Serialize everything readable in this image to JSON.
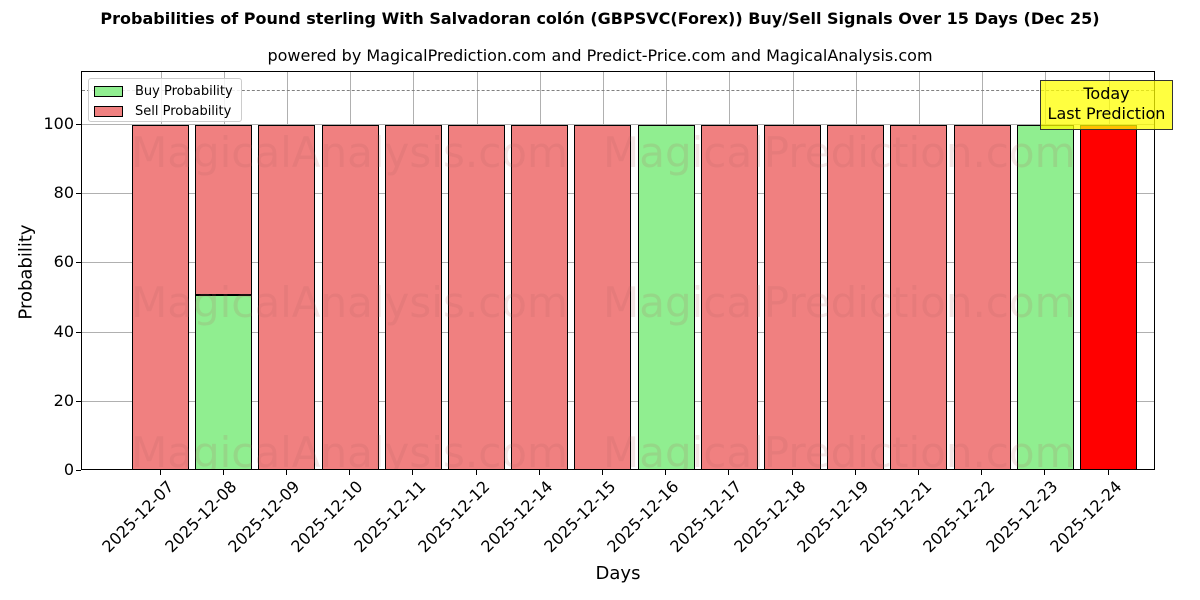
{
  "chart_data": {
    "type": "bar",
    "stacked": true,
    "title": "Probabilities of Pound sterling With Salvadoran colón (GBPSVC(Forex)) Buy/Sell Signals Over 15 Days (Dec 25)",
    "subtitle": "powered by MagicalPrediction.com and Predict-Price.com and MagicalAnalysis.com",
    "xlabel": "Days",
    "ylabel": "Probability",
    "ylim": [
      0,
      115
    ],
    "yticks": [
      0,
      20,
      40,
      60,
      80,
      100
    ],
    "grid": true,
    "legend_position": "upper left",
    "reference_line": {
      "y": 110,
      "style": "dashed",
      "color": "#808080"
    },
    "categories": [
      "2025-12-07",
      "2025-12-08",
      "2025-12-09",
      "2025-12-10",
      "2025-12-11",
      "2025-12-12",
      "2025-12-14",
      "2025-12-15",
      "2025-12-16",
      "2025-12-17",
      "2025-12-18",
      "2025-12-19",
      "2025-12-21",
      "2025-12-22",
      "2025-12-23",
      "2025-12-24"
    ],
    "series": [
      {
        "name": "Buy Probability",
        "color": "#90ee90",
        "values": [
          0,
          51,
          0,
          0,
          0,
          0,
          0,
          0,
          100,
          0,
          0,
          0,
          0,
          0,
          100,
          0
        ]
      },
      {
        "name": "Sell Probability",
        "color": "#f08080",
        "values": [
          100,
          49,
          100,
          100,
          100,
          100,
          100,
          100,
          0,
          100,
          100,
          100,
          100,
          100,
          0,
          100
        ]
      }
    ],
    "highlight": {
      "category": "2025-12-24",
      "color": "#ff0000",
      "series": "Sell Probability"
    },
    "annotation": {
      "line1": "Today",
      "line2": "Last Prediction",
      "background": "#ffff00"
    },
    "watermarks": [
      "MagicalAnalysis.com",
      "MagicalPrediction.com"
    ]
  }
}
